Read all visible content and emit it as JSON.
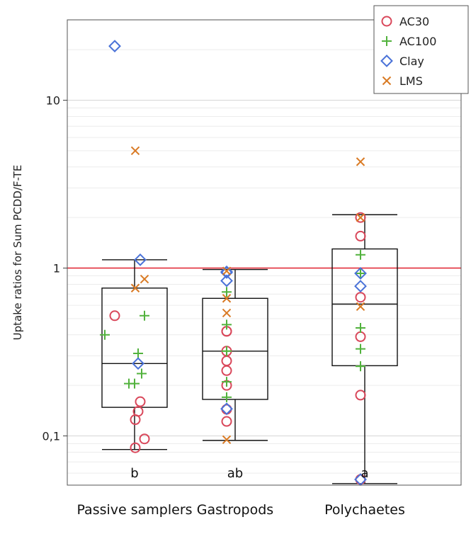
{
  "chart_data": {
    "type": "box",
    "ylabel": "Uptake ratios for Sum PCDD/F-TE",
    "yscale": "log",
    "ylim": [
      0.05,
      30
    ],
    "major_ticks": [
      0.1,
      1,
      10
    ],
    "major_tick_labels": [
      "0,1",
      "1",
      "10"
    ],
    "reference_line": {
      "y": 1,
      "color": "#e0202e"
    },
    "categories": [
      "Passive samplers",
      "Gastropods",
      "Polychaetes"
    ],
    "significance_letters": [
      "b",
      "ab",
      "a"
    ],
    "boxes": [
      {
        "category": "Passive samplers",
        "whisker_low": 0.083,
        "q1": 0.148,
        "median": 0.27,
        "q3": 0.76,
        "whisker_high": 1.12
      },
      {
        "category": "Gastropods",
        "whisker_low": 0.094,
        "q1": 0.165,
        "median": 0.32,
        "q3": 0.66,
        "whisker_high": 0.98
      },
      {
        "category": "Polychaetes",
        "whisker_low": 0.052,
        "q1": 0.262,
        "median": 0.61,
        "q3": 1.3,
        "whisker_high": 2.08
      }
    ],
    "legend": {
      "position": "top-right",
      "entries": [
        {
          "label": "AC30",
          "marker": "circle",
          "color": "#d9475a"
        },
        {
          "label": "AC100",
          "marker": "plus",
          "color": "#52b23d"
        },
        {
          "label": "Clay",
          "marker": "diamond",
          "color": "#4a72d8"
        },
        {
          "label": "LMS",
          "marker": "x",
          "color": "#d97a24"
        }
      ]
    },
    "series": [
      {
        "name": "AC30",
        "points": [
          {
            "category": "Passive samplers",
            "y": 0.52
          },
          {
            "category": "Passive samplers",
            "y": 0.16
          },
          {
            "category": "Passive samplers",
            "y": 0.14
          },
          {
            "category": "Passive samplers",
            "y": 0.125
          },
          {
            "category": "Passive samplers",
            "y": 0.096
          },
          {
            "category": "Passive samplers",
            "y": 0.085
          },
          {
            "category": "Gastropods",
            "y": 0.42
          },
          {
            "category": "Gastropods",
            "y": 0.42
          },
          {
            "category": "Gastropods",
            "y": 0.32
          },
          {
            "category": "Gastropods",
            "y": 0.28
          },
          {
            "category": "Gastropods",
            "y": 0.245
          },
          {
            "category": "Gastropods",
            "y": 0.2
          },
          {
            "category": "Gastropods",
            "y": 0.144
          },
          {
            "category": "Gastropods",
            "y": 0.122
          },
          {
            "category": "Polychaetes",
            "y": 2.0
          },
          {
            "category": "Polychaetes",
            "y": 1.55
          },
          {
            "category": "Polychaetes",
            "y": 0.67
          },
          {
            "category": "Polychaetes",
            "y": 0.39
          },
          {
            "category": "Polychaetes",
            "y": 0.175
          },
          {
            "category": "Polychaetes",
            "y": 0.055
          }
        ]
      },
      {
        "name": "AC100",
        "points": [
          {
            "category": "Passive samplers",
            "y": 0.52
          },
          {
            "category": "Passive samplers",
            "y": 0.4
          },
          {
            "category": "Passive samplers",
            "y": 0.31
          },
          {
            "category": "Passive samplers",
            "y": 0.235
          },
          {
            "category": "Passive samplers",
            "y": 0.205
          },
          {
            "category": "Passive samplers",
            "y": 0.205
          },
          {
            "category": "Gastropods",
            "y": 0.72
          },
          {
            "category": "Gastropods",
            "y": 0.46
          },
          {
            "category": "Gastropods",
            "y": 0.32
          },
          {
            "category": "Gastropods",
            "y": 0.32
          },
          {
            "category": "Gastropods",
            "y": 0.21
          },
          {
            "category": "Gastropods",
            "y": 0.17
          },
          {
            "category": "Polychaetes",
            "y": 1.2
          },
          {
            "category": "Polychaetes",
            "y": 0.93
          },
          {
            "category": "Polychaetes",
            "y": 0.44
          },
          {
            "category": "Polychaetes",
            "y": 0.33
          },
          {
            "category": "Polychaetes",
            "y": 0.26
          },
          {
            "category": "Polychaetes",
            "y": 0.26
          }
        ]
      },
      {
        "name": "Clay",
        "points": [
          {
            "category": "Passive samplers",
            "y": 21
          },
          {
            "category": "Passive samplers",
            "y": 1.12
          },
          {
            "category": "Passive samplers",
            "y": 0.27
          },
          {
            "category": "Gastropods",
            "y": 0.95
          },
          {
            "category": "Gastropods",
            "y": 0.94
          },
          {
            "category": "Gastropods",
            "y": 0.84
          },
          {
            "category": "Gastropods",
            "y": 0.145
          },
          {
            "category": "Polychaetes",
            "y": 0.93
          },
          {
            "category": "Polychaetes",
            "y": 0.78
          },
          {
            "category": "Polychaetes",
            "y": 0.055
          }
        ]
      },
      {
        "name": "LMS",
        "points": [
          {
            "category": "Passive samplers",
            "y": 5.0
          },
          {
            "category": "Passive samplers",
            "y": 0.86
          },
          {
            "category": "Passive samplers",
            "y": 0.76
          },
          {
            "category": "Gastropods",
            "y": 0.96
          },
          {
            "category": "Gastropods",
            "y": 0.66
          },
          {
            "category": "Gastropods",
            "y": 0.54
          },
          {
            "category": "Gastropods",
            "y": 0.095
          },
          {
            "category": "Polychaetes",
            "y": 4.3
          },
          {
            "category": "Polychaetes",
            "y": 2.0
          },
          {
            "category": "Polychaetes",
            "y": 0.59
          }
        ]
      }
    ]
  }
}
